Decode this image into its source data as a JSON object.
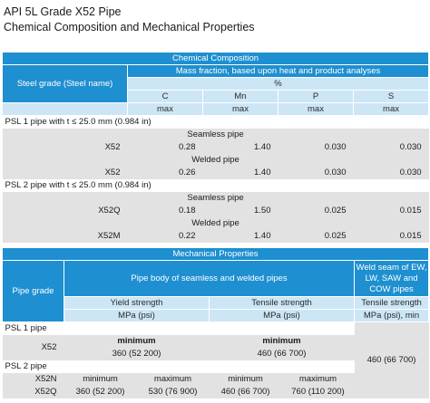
{
  "title_line1": "API 5L Grade X52 Pipe",
  "title_line2": "Chemical Composition and Mechanical Properties",
  "chem": {
    "header": "Chemical Composition",
    "steel_grade_header": "Steel grade (Steel name)",
    "mass_fraction_header": "Mass fraction, based upon heat and product analyses",
    "unit": "%",
    "elements": [
      "C",
      "Mn",
      "P",
      "S"
    ],
    "limit_label": "max",
    "psl1_label": "PSL 1 pipe with t ≤ 25.0 mm (0.984 in)",
    "psl2_label": "PSL 2 pipe with t ≤ 25.0 mm (0.984 in)",
    "seamless_label": "Seamless pipe",
    "welded_label": "Welded pipe",
    "rows": {
      "psl1_seamless": {
        "grade": "X52",
        "values": [
          "0.28",
          "1.40",
          "0.030",
          "0.030"
        ]
      },
      "psl1_welded": {
        "grade": "X52",
        "values": [
          "0.26",
          "1.40",
          "0.030",
          "0.030"
        ]
      },
      "psl2_seamless": {
        "grade": "X52Q",
        "values": [
          "0.18",
          "1.50",
          "0.025",
          "0.015"
        ]
      },
      "psl2_welded": {
        "grade": "X52M",
        "values": [
          "0.22",
          "1.40",
          "0.025",
          "0.015"
        ]
      }
    }
  },
  "mech": {
    "header": "Mechanical Properties",
    "pipe_grade_header": "Pipe grade",
    "pipe_body_header": "Pipe body of seamless and welded pipes",
    "weld_seam_header": "Weld seam of EW, LW, SAW and COW pipes",
    "yield_header": "Yield strength",
    "tensile_header": "Tensile strength",
    "tensile_weld_header": "Tensile strength",
    "unit_mpa_psi": "MPa (psi)",
    "unit_mpa_psi_min": "MPa (psi), min",
    "psl1_label": "PSL 1 pipe",
    "psl2_label": "PSL 2 pipe",
    "minimum_label": "minimum",
    "maximum_label": "maximum",
    "psl1_row": {
      "grade": "X52",
      "yield_min": "360 (52 200)",
      "tensile_min": "460 (66 700)"
    },
    "weld_value": "460 (66 700)",
    "psl2_grades": {
      "g1": "X52N",
      "g2": "X52Q"
    },
    "psl2_values": {
      "yield_min": "360 (52 200)",
      "yield_max": "530 (76 900)",
      "tensile_min": "460 (66 700)",
      "tensile_max": "760 (110 200)"
    }
  }
}
